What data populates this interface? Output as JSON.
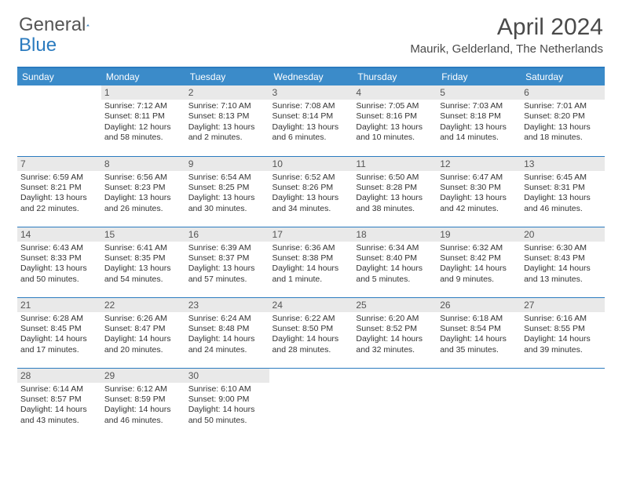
{
  "brand": {
    "part1": "General",
    "part2": "Blue"
  },
  "title": {
    "month": "April 2024",
    "location": "Maurik, Gelderland, The Netherlands"
  },
  "colors": {
    "header_bg": "#3b8bc9",
    "accent_border": "#2b7bbf",
    "daynum_bg": "#e9e9e9",
    "text": "#333333",
    "title_text": "#4a4a4a"
  },
  "day_headers": [
    "Sunday",
    "Monday",
    "Tuesday",
    "Wednesday",
    "Thursday",
    "Friday",
    "Saturday"
  ],
  "weeks": [
    [
      null,
      {
        "n": "1",
        "sunrise": "Sunrise: 7:12 AM",
        "sunset": "Sunset: 8:11 PM",
        "dl1": "Daylight: 12 hours",
        "dl2": "and 58 minutes."
      },
      {
        "n": "2",
        "sunrise": "Sunrise: 7:10 AM",
        "sunset": "Sunset: 8:13 PM",
        "dl1": "Daylight: 13 hours",
        "dl2": "and 2 minutes."
      },
      {
        "n": "3",
        "sunrise": "Sunrise: 7:08 AM",
        "sunset": "Sunset: 8:14 PM",
        "dl1": "Daylight: 13 hours",
        "dl2": "and 6 minutes."
      },
      {
        "n": "4",
        "sunrise": "Sunrise: 7:05 AM",
        "sunset": "Sunset: 8:16 PM",
        "dl1": "Daylight: 13 hours",
        "dl2": "and 10 minutes."
      },
      {
        "n": "5",
        "sunrise": "Sunrise: 7:03 AM",
        "sunset": "Sunset: 8:18 PM",
        "dl1": "Daylight: 13 hours",
        "dl2": "and 14 minutes."
      },
      {
        "n": "6",
        "sunrise": "Sunrise: 7:01 AM",
        "sunset": "Sunset: 8:20 PM",
        "dl1": "Daylight: 13 hours",
        "dl2": "and 18 minutes."
      }
    ],
    [
      {
        "n": "7",
        "sunrise": "Sunrise: 6:59 AM",
        "sunset": "Sunset: 8:21 PM",
        "dl1": "Daylight: 13 hours",
        "dl2": "and 22 minutes."
      },
      {
        "n": "8",
        "sunrise": "Sunrise: 6:56 AM",
        "sunset": "Sunset: 8:23 PM",
        "dl1": "Daylight: 13 hours",
        "dl2": "and 26 minutes."
      },
      {
        "n": "9",
        "sunrise": "Sunrise: 6:54 AM",
        "sunset": "Sunset: 8:25 PM",
        "dl1": "Daylight: 13 hours",
        "dl2": "and 30 minutes."
      },
      {
        "n": "10",
        "sunrise": "Sunrise: 6:52 AM",
        "sunset": "Sunset: 8:26 PM",
        "dl1": "Daylight: 13 hours",
        "dl2": "and 34 minutes."
      },
      {
        "n": "11",
        "sunrise": "Sunrise: 6:50 AM",
        "sunset": "Sunset: 8:28 PM",
        "dl1": "Daylight: 13 hours",
        "dl2": "and 38 minutes."
      },
      {
        "n": "12",
        "sunrise": "Sunrise: 6:47 AM",
        "sunset": "Sunset: 8:30 PM",
        "dl1": "Daylight: 13 hours",
        "dl2": "and 42 minutes."
      },
      {
        "n": "13",
        "sunrise": "Sunrise: 6:45 AM",
        "sunset": "Sunset: 8:31 PM",
        "dl1": "Daylight: 13 hours",
        "dl2": "and 46 minutes."
      }
    ],
    [
      {
        "n": "14",
        "sunrise": "Sunrise: 6:43 AM",
        "sunset": "Sunset: 8:33 PM",
        "dl1": "Daylight: 13 hours",
        "dl2": "and 50 minutes."
      },
      {
        "n": "15",
        "sunrise": "Sunrise: 6:41 AM",
        "sunset": "Sunset: 8:35 PM",
        "dl1": "Daylight: 13 hours",
        "dl2": "and 54 minutes."
      },
      {
        "n": "16",
        "sunrise": "Sunrise: 6:39 AM",
        "sunset": "Sunset: 8:37 PM",
        "dl1": "Daylight: 13 hours",
        "dl2": "and 57 minutes."
      },
      {
        "n": "17",
        "sunrise": "Sunrise: 6:36 AM",
        "sunset": "Sunset: 8:38 PM",
        "dl1": "Daylight: 14 hours",
        "dl2": "and 1 minute."
      },
      {
        "n": "18",
        "sunrise": "Sunrise: 6:34 AM",
        "sunset": "Sunset: 8:40 PM",
        "dl1": "Daylight: 14 hours",
        "dl2": "and 5 minutes."
      },
      {
        "n": "19",
        "sunrise": "Sunrise: 6:32 AM",
        "sunset": "Sunset: 8:42 PM",
        "dl1": "Daylight: 14 hours",
        "dl2": "and 9 minutes."
      },
      {
        "n": "20",
        "sunrise": "Sunrise: 6:30 AM",
        "sunset": "Sunset: 8:43 PM",
        "dl1": "Daylight: 14 hours",
        "dl2": "and 13 minutes."
      }
    ],
    [
      {
        "n": "21",
        "sunrise": "Sunrise: 6:28 AM",
        "sunset": "Sunset: 8:45 PM",
        "dl1": "Daylight: 14 hours",
        "dl2": "and 17 minutes."
      },
      {
        "n": "22",
        "sunrise": "Sunrise: 6:26 AM",
        "sunset": "Sunset: 8:47 PM",
        "dl1": "Daylight: 14 hours",
        "dl2": "and 20 minutes."
      },
      {
        "n": "23",
        "sunrise": "Sunrise: 6:24 AM",
        "sunset": "Sunset: 8:48 PM",
        "dl1": "Daylight: 14 hours",
        "dl2": "and 24 minutes."
      },
      {
        "n": "24",
        "sunrise": "Sunrise: 6:22 AM",
        "sunset": "Sunset: 8:50 PM",
        "dl1": "Daylight: 14 hours",
        "dl2": "and 28 minutes."
      },
      {
        "n": "25",
        "sunrise": "Sunrise: 6:20 AM",
        "sunset": "Sunset: 8:52 PM",
        "dl1": "Daylight: 14 hours",
        "dl2": "and 32 minutes."
      },
      {
        "n": "26",
        "sunrise": "Sunrise: 6:18 AM",
        "sunset": "Sunset: 8:54 PM",
        "dl1": "Daylight: 14 hours",
        "dl2": "and 35 minutes."
      },
      {
        "n": "27",
        "sunrise": "Sunrise: 6:16 AM",
        "sunset": "Sunset: 8:55 PM",
        "dl1": "Daylight: 14 hours",
        "dl2": "and 39 minutes."
      }
    ],
    [
      {
        "n": "28",
        "sunrise": "Sunrise: 6:14 AM",
        "sunset": "Sunset: 8:57 PM",
        "dl1": "Daylight: 14 hours",
        "dl2": "and 43 minutes."
      },
      {
        "n": "29",
        "sunrise": "Sunrise: 6:12 AM",
        "sunset": "Sunset: 8:59 PM",
        "dl1": "Daylight: 14 hours",
        "dl2": "and 46 minutes."
      },
      {
        "n": "30",
        "sunrise": "Sunrise: 6:10 AM",
        "sunset": "Sunset: 9:00 PM",
        "dl1": "Daylight: 14 hours",
        "dl2": "and 50 minutes."
      },
      null,
      null,
      null,
      null
    ]
  ]
}
